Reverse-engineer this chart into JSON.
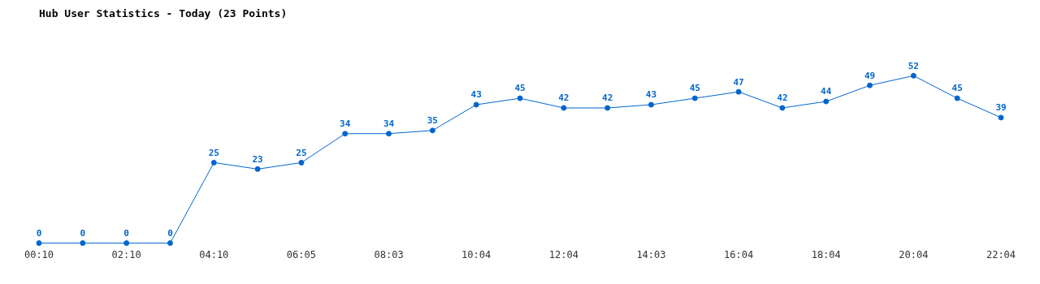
{
  "chart_data": {
    "type": "line",
    "title": "Hub User Statistics - Today (23 Points)",
    "categories": [
      "00:10",
      null,
      "02:10",
      null,
      "04:10",
      null,
      "06:05",
      null,
      "08:03",
      null,
      "10:04",
      null,
      "12:04",
      null,
      "14:03",
      null,
      "16:04",
      null,
      "18:04",
      null,
      "20:04",
      null,
      "22:04"
    ],
    "series": [
      {
        "color": "#0066cc",
        "values": [
          0,
          0,
          0,
          0,
          25,
          23,
          25,
          34,
          34,
          35,
          43,
          45,
          42,
          42,
          43,
          45,
          47,
          42,
          44,
          49,
          52,
          45,
          39
        ]
      }
    ],
    "data_labels": true,
    "marker": "circle",
    "line_style": "solid",
    "grid": false,
    "legend": false,
    "tick_labels": "x"
  }
}
